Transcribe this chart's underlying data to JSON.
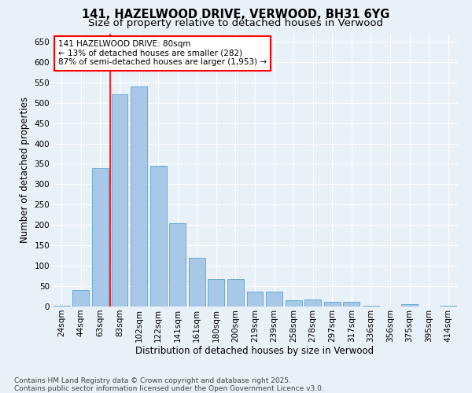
{
  "title": "141, HAZELWOOD DRIVE, VERWOOD, BH31 6YG",
  "subtitle": "Size of property relative to detached houses in Verwood",
  "xlabel": "Distribution of detached houses by size in Verwood",
  "ylabel": "Number of detached properties",
  "categories": [
    "24sqm",
    "44sqm",
    "63sqm",
    "83sqm",
    "102sqm",
    "122sqm",
    "141sqm",
    "161sqm",
    "180sqm",
    "200sqm",
    "219sqm",
    "239sqm",
    "258sqm",
    "278sqm",
    "297sqm",
    "317sqm",
    "336sqm",
    "356sqm",
    "375sqm",
    "395sqm",
    "414sqm"
  ],
  "values": [
    2,
    40,
    340,
    520,
    540,
    345,
    205,
    120,
    67,
    67,
    37,
    37,
    15,
    18,
    12,
    12,
    2,
    0,
    5,
    0,
    2
  ],
  "bar_color": "#a8c8e8",
  "bar_edge_color": "#6aaad4",
  "background_color": "#e8f0f8",
  "grid_color": "#ffffff",
  "vline_color": "red",
  "annotation_line1": "141 HAZELWOOD DRIVE: 80sqm",
  "annotation_line2": "← 13% of detached houses are smaller (282)",
  "annotation_line3": "87% of semi-detached houses are larger (1,953) →",
  "ylim_max": 670,
  "yticks": [
    0,
    50,
    100,
    150,
    200,
    250,
    300,
    350,
    400,
    450,
    500,
    550,
    600,
    650
  ],
  "footer_text": "Contains HM Land Registry data © Crown copyright and database right 2025.\nContains public sector information licensed under the Open Government Licence v3.0.",
  "title_fontsize": 10.5,
  "subtitle_fontsize": 9.5,
  "ylabel_fontsize": 8.5,
  "xlabel_fontsize": 8.5,
  "tick_fontsize": 7.5,
  "annotation_fontsize": 7.5,
  "footer_fontsize": 6.5
}
